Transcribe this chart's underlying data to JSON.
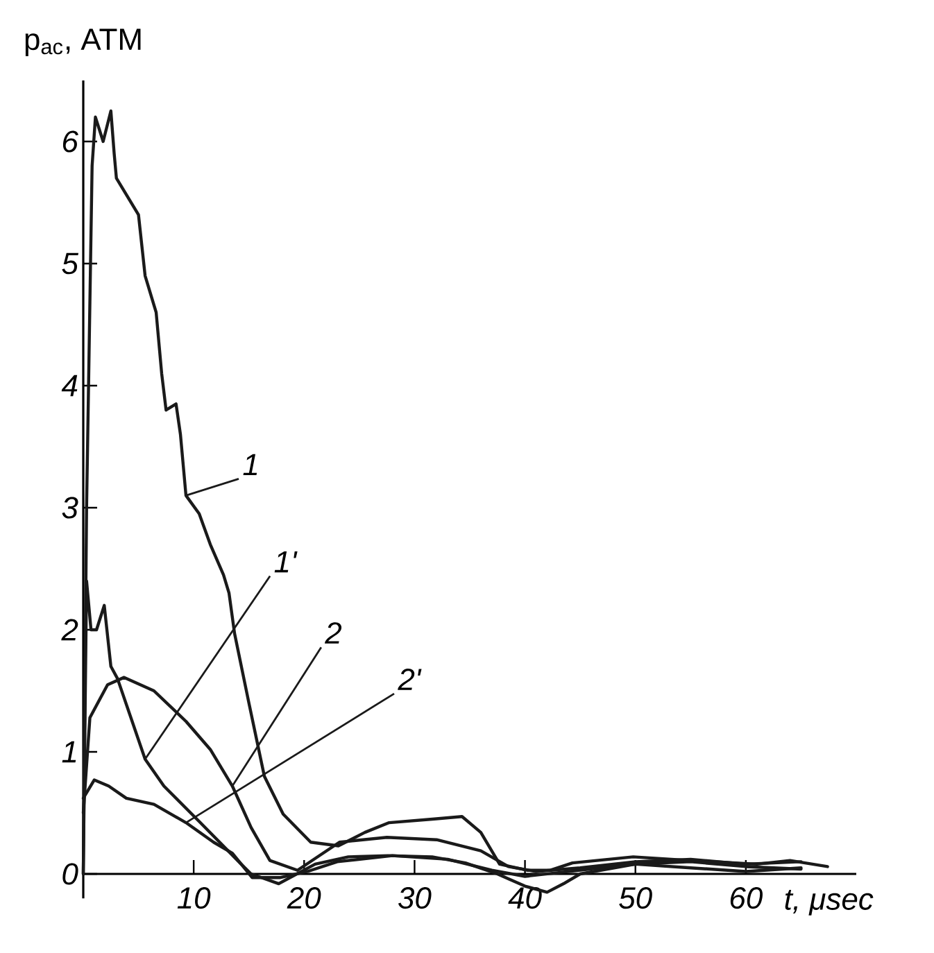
{
  "chart_data": {
    "type": "line",
    "xlabel": "t, μsec",
    "ylabel": "p$_{ac}$, ATM",
    "xlim": [
      0,
      70
    ],
    "ylim": [
      -0.2,
      6.5
    ],
    "xticks": [
      10,
      20,
      30,
      40,
      50,
      60
    ],
    "yticks": [
      0,
      1,
      2,
      3,
      4,
      5,
      6
    ],
    "grid": false,
    "legend": false,
    "marker": "none",
    "line_style": "solid",
    "series": [
      {
        "name": "1",
        "color": "#1a1a1a",
        "x": [
          0,
          0.3,
          0.8,
          1.1,
          1.8,
          2.5,
          2.8,
          3.0,
          5.0,
          5.6,
          6.6,
          7.1,
          7.5,
          8.4,
          8.8,
          9.3,
          10.5,
          11.5,
          12.7,
          13.2,
          13.7,
          15,
          16.4,
          18.1,
          20.6,
          23.1,
          25.5,
          27.7,
          31.8,
          34.3,
          36,
          37.7,
          40.2,
          42.3,
          44.3,
          49.8,
          55,
          61,
          64,
          67.4
        ],
        "values": [
          0,
          3.0,
          5.8,
          6.2,
          6.0,
          6.25,
          5.9,
          5.7,
          5.4,
          4.9,
          4.6,
          4.1,
          3.8,
          3.85,
          3.6,
          3.1,
          2.95,
          2.7,
          2.45,
          2.3,
          1.97,
          1.4,
          0.8,
          0.49,
          0.26,
          0.23,
          0.34,
          0.42,
          0.45,
          0.47,
          0.34,
          0.08,
          0.03,
          0.03,
          0.09,
          0.14,
          0.11,
          0.08,
          0.11,
          0.06
        ]
      },
      {
        "name": "1'",
        "color": "#1a1a1a",
        "x": [
          0,
          0.3,
          0.7,
          1.2,
          1.9,
          2.5,
          3.1,
          5.6,
          7.3,
          10.6,
          14.3,
          15.2,
          17.7,
          21,
          24,
          27.6,
          31.6,
          34.6,
          37.5,
          40,
          42,
          43.5,
          45,
          50,
          55,
          60,
          65
        ],
        "values": [
          0,
          2.4,
          2.0,
          2.0,
          2.2,
          1.7,
          1.6,
          0.94,
          0.72,
          0.42,
          0.08,
          0,
          -0.08,
          0.08,
          0.14,
          0.15,
          0.14,
          0.09,
          0,
          -0.1,
          -0.15,
          -0.08,
          0,
          0.08,
          0.1,
          0.06,
          0.04
        ]
      },
      {
        "name": "2",
        "color": "#1a1a1a",
        "x": [
          0,
          0.6,
          2.2,
          3.7,
          6.4,
          9.3,
          11.5,
          13.5,
          15.2,
          16.9,
          19.4,
          23.2,
          27.5,
          32,
          36,
          38.5,
          41,
          45,
          50,
          55,
          60,
          65
        ],
        "values": [
          0.5,
          1.28,
          1.55,
          1.61,
          1.5,
          1.25,
          1.02,
          0.72,
          0.38,
          0.11,
          0.03,
          0.26,
          0.3,
          0.28,
          0.19,
          0.06,
          0.02,
          0.05,
          0.1,
          0.12,
          0.08,
          0.1
        ]
      },
      {
        "name": "2'",
        "color": "#1a1a1a",
        "x": [
          0,
          1.0,
          2.3,
          3.9,
          6.4,
          9.3,
          11.8,
          13.5,
          15.3,
          17.8,
          20.3,
          23,
          28,
          33,
          37,
          40,
          45,
          50,
          55,
          60,
          65
        ],
        "values": [
          0.62,
          0.77,
          0.72,
          0.62,
          0.57,
          0.42,
          0.26,
          0.17,
          -0.03,
          -0.03,
          0.02,
          0.1,
          0.15,
          0.12,
          0.03,
          -0.02,
          0.03,
          0.08,
          0.05,
          0.02,
          0.05
        ]
      }
    ]
  }
}
